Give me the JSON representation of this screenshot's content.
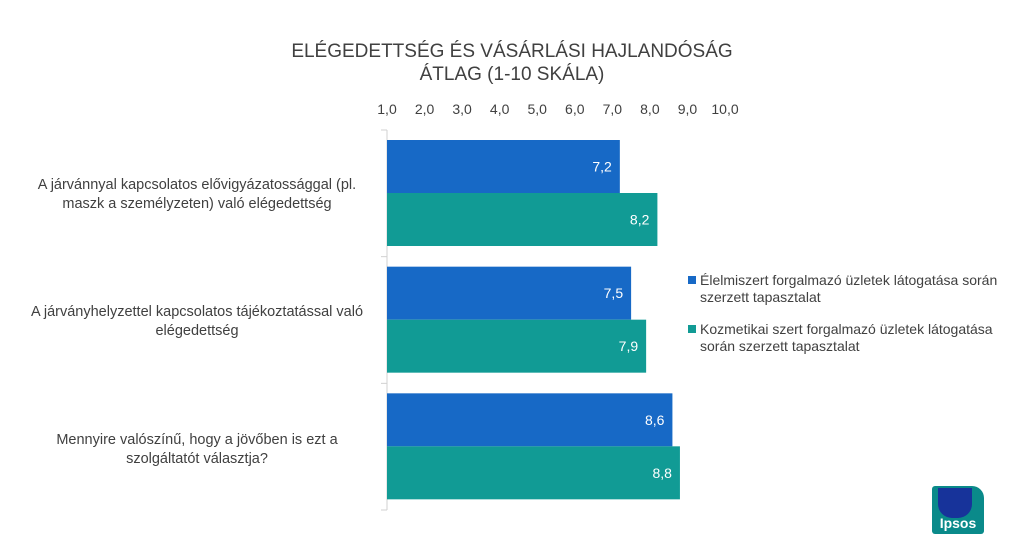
{
  "colors": {
    "series1": "#1769c6",
    "series2": "#119b95",
    "axis": "#d0d0d0",
    "text": "#404040"
  },
  "chart_data": {
    "type": "bar",
    "orientation": "horizontal",
    "title": "ELÉGEDETTSÉG ÉS VÁSÁRLÁSI HAJLANDÓSÁG",
    "subtitle": "ÁTLAG (1-10 SKÁLA)",
    "categories": [
      "A járvánnyal kapcsolatos elővigyázatossággal (pl. maszk a személyzeten) való elégedettség",
      "A járványhelyzettel kapcsolatos tájékoztatással való elégedettség",
      "Mennyire valószínű, hogy a jövőben is ezt a szolgáltatót választja?"
    ],
    "series": [
      {
        "name": "Élelmiszert forgalmazó üzletek látogatása során szerzett tapasztalat",
        "values": [
          7.2,
          7.5,
          8.6
        ],
        "labels": [
          "7,2",
          "7,5",
          "8,6"
        ]
      },
      {
        "name": "Kozmetikai szert forgalmazó üzletek látogatása során szerzett tapasztalat",
        "values": [
          8.2,
          7.9,
          8.8
        ],
        "labels": [
          "8,2",
          "7,9",
          "8,8"
        ]
      }
    ],
    "xlim": [
      1,
      10
    ],
    "ticks": [
      1,
      2,
      3,
      4,
      5,
      6,
      7,
      8,
      9,
      10
    ],
    "tick_labels": [
      "1,0",
      "2,0",
      "3,0",
      "4,0",
      "5,0",
      "6,0",
      "7,0",
      "8,0",
      "9,0",
      "10,0"
    ],
    "legend_position": "right"
  },
  "logo": {
    "text": "Ipsos"
  }
}
